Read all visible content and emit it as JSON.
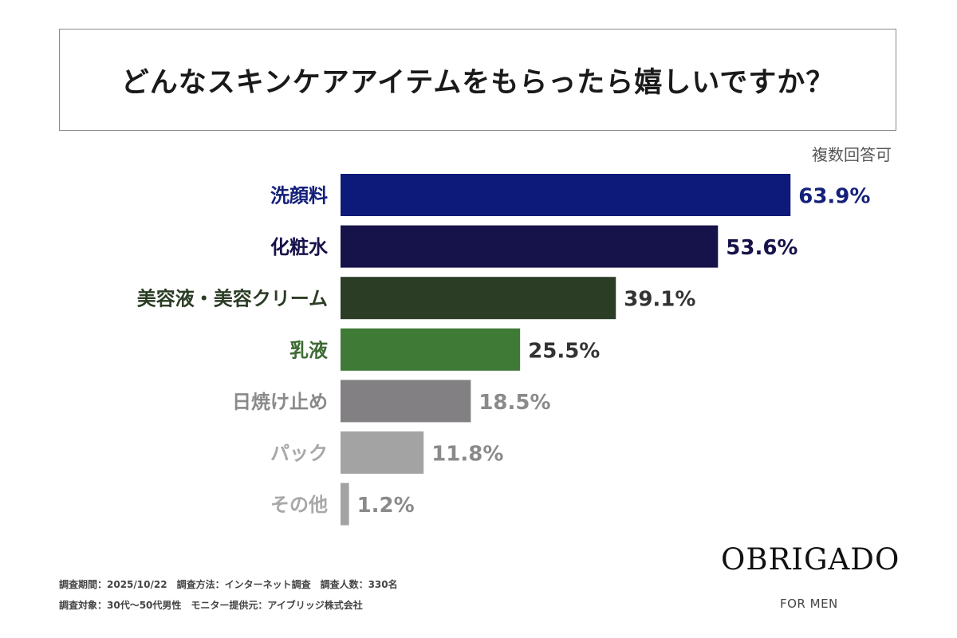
{
  "title": "どんなスキンケアアイテムをもらったら嬉しいですか？",
  "note": "複数回答可",
  "chart_data": {
    "type": "bar",
    "orientation": "horizontal",
    "title": "どんなスキンケアアイテムをもらったら嬉しいですか？",
    "unit": "%",
    "categories": [
      "洗顔料",
      "化粧水",
      "美容液・美容クリーム",
      "乳液",
      "日焼け止め",
      "パック",
      "その他"
    ],
    "values": [
      63.9,
      53.6,
      39.1,
      25.5,
      18.5,
      11.8,
      1.2
    ],
    "value_labels": [
      "63.9%",
      "53.6%",
      "39.1%",
      "25.5%",
      "18.5%",
      "11.8%",
      "1.2%"
    ],
    "bar_colors": [
      "#0e1a7a",
      "#16124a",
      "#2b3d25",
      "#3f7b36",
      "#828082",
      "#a3a3a3",
      "#a3a3a3"
    ],
    "label_colors": [
      "#14207a",
      "#16124a",
      "#2b3d25",
      "#3d6a33",
      "#8a8a8a",
      "#a8a8a8",
      "#a8a8a8"
    ],
    "value_colors": [
      "#14207a",
      "#16124a",
      "#333333",
      "#333333",
      "#8a8a8a",
      "#8a8a8a",
      "#8a8a8a"
    ],
    "grid": false,
    "legend": "none"
  },
  "footer": {
    "line1": "調査期間：2025/10/22　調査方法：インターネット調査　調査人数：330名",
    "line2": "調査対象：30代〜50代男性　モニター提供元：アイブリッジ株式会社"
  },
  "brand": {
    "name": "OBRIGADO",
    "tagline": "FOR MEN"
  }
}
